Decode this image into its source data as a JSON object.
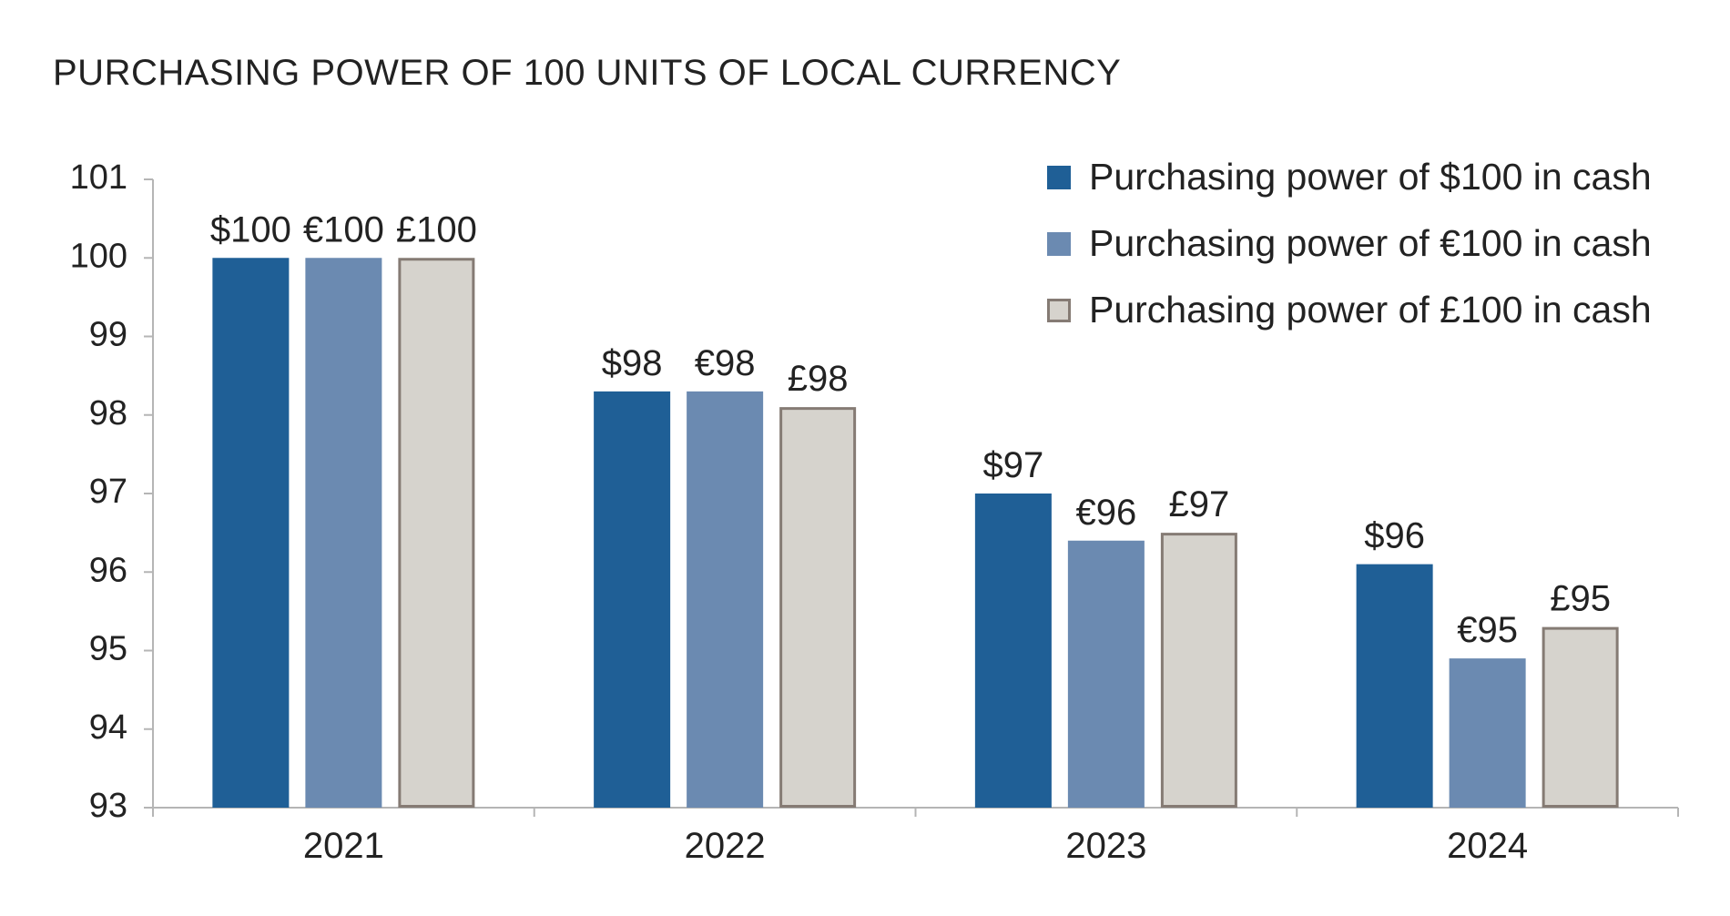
{
  "chart_data": {
    "type": "bar",
    "title": "PURCHASING POWER OF 100 UNITS OF LOCAL CURRENCY",
    "categories": [
      "2021",
      "2022",
      "2023",
      "2024"
    ],
    "ylim": [
      93,
      101
    ],
    "yticks": [
      "93",
      "94",
      "95",
      "96",
      "97",
      "98",
      "99",
      "100",
      "101"
    ],
    "xlabel": "",
    "ylabel": "",
    "grid": false,
    "legend_position": "top-right",
    "series": [
      {
        "name": "Purchasing power of $100 in cash",
        "color": "#1f5f96",
        "border": "#1f5f96",
        "values": [
          100,
          98.3,
          97.0,
          96.1
        ],
        "labels": [
          "$100",
          "$98",
          "$97",
          "$96"
        ]
      },
      {
        "name": "Purchasing power of €100 in cash",
        "color": "#6b8ab1",
        "border": "#6b8ab1",
        "values": [
          100,
          98.3,
          96.4,
          94.9
        ],
        "labels": [
          "€100",
          "€98",
          "€96",
          "€95"
        ]
      },
      {
        "name": "Purchasing power of £100 in cash",
        "color": "#d6d3cd",
        "border": "#857b74",
        "values": [
          100,
          98.1,
          96.5,
          95.3
        ],
        "labels": [
          "£100",
          "£98",
          "£97",
          "£95"
        ]
      }
    ]
  }
}
